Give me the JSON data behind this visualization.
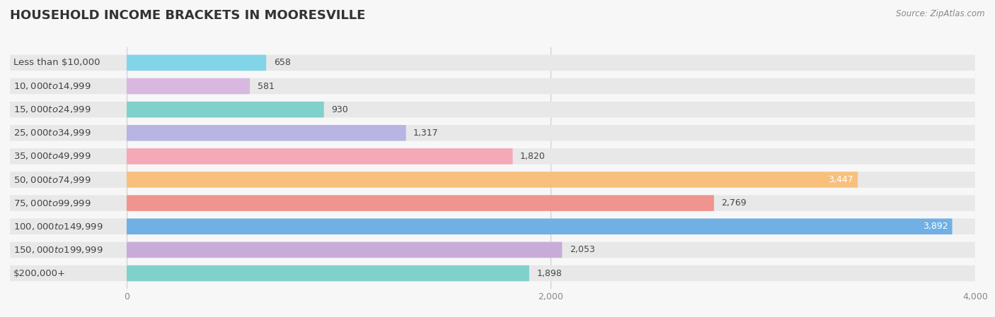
{
  "title": "HOUSEHOLD INCOME BRACKETS IN MOORESVILLE",
  "source": "Source: ZipAtlas.com",
  "categories": [
    "Less than $10,000",
    "$10,000 to $14,999",
    "$15,000 to $24,999",
    "$25,000 to $34,999",
    "$35,000 to $49,999",
    "$50,000 to $74,999",
    "$75,000 to $99,999",
    "$100,000 to $149,999",
    "$150,000 to $199,999",
    "$200,000+"
  ],
  "values": [
    658,
    581,
    930,
    1317,
    1820,
    3447,
    2769,
    3892,
    2053,
    1898
  ],
  "colors": [
    "#82d4e8",
    "#d8b8e0",
    "#80d0cc",
    "#b8b4e4",
    "#f5a8b8",
    "#f8c07c",
    "#f09490",
    "#70b0e4",
    "#c8acd8",
    "#80d0cc"
  ],
  "xlim_data": [
    -550,
    4000
  ],
  "xlim_display": [
    0,
    4000
  ],
  "xticks": [
    0,
    2000,
    4000
  ],
  "background_color": "#f7f7f7",
  "bar_bg_color": "#e8e8e8",
  "title_fontsize": 13,
  "label_fontsize": 9.5,
  "value_fontsize": 9
}
